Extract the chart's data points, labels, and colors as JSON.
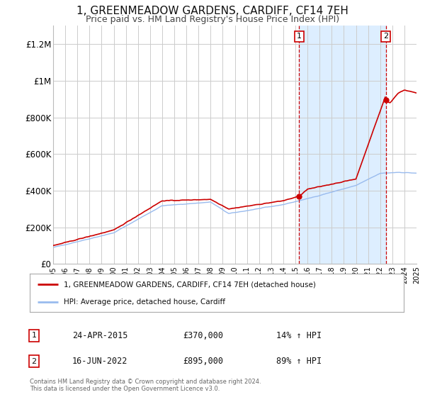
{
  "title": "1, GREENMEADOW GARDENS, CARDIFF, CF14 7EH",
  "subtitle": "Price paid vs. HM Land Registry's House Price Index (HPI)",
  "title_fontsize": 11,
  "subtitle_fontsize": 9,
  "background_color": "#ffffff",
  "plot_bg_color": "#ffffff",
  "grid_color": "#cccccc",
  "hpi_color": "#99bbee",
  "price_color": "#cc0000",
  "shade_color": "#ddeeff",
  "ylim": [
    0,
    1300000
  ],
  "yticks": [
    0,
    200000,
    400000,
    600000,
    800000,
    1000000,
    1200000
  ],
  "ytick_labels": [
    "£0",
    "£200K",
    "£400K",
    "£600K",
    "£800K",
    "£1M",
    "£1.2M"
  ],
  "xstart": 1995,
  "xend": 2025,
  "sale1_year": 2015.31,
  "sale1_price": 370000,
  "sale2_year": 2022.46,
  "sale2_price": 895000,
  "legend_label1": "1, GREENMEADOW GARDENS, CARDIFF, CF14 7EH (detached house)",
  "legend_label2": "HPI: Average price, detached house, Cardiff",
  "annotation1_date": "24-APR-2015",
  "annotation1_price": "£370,000",
  "annotation1_hpi": "14% ↑ HPI",
  "annotation2_date": "16-JUN-2022",
  "annotation2_price": "£895,000",
  "annotation2_hpi": "89% ↑ HPI",
  "footnote": "Contains HM Land Registry data © Crown copyright and database right 2024.\nThis data is licensed under the Open Government Licence v3.0."
}
